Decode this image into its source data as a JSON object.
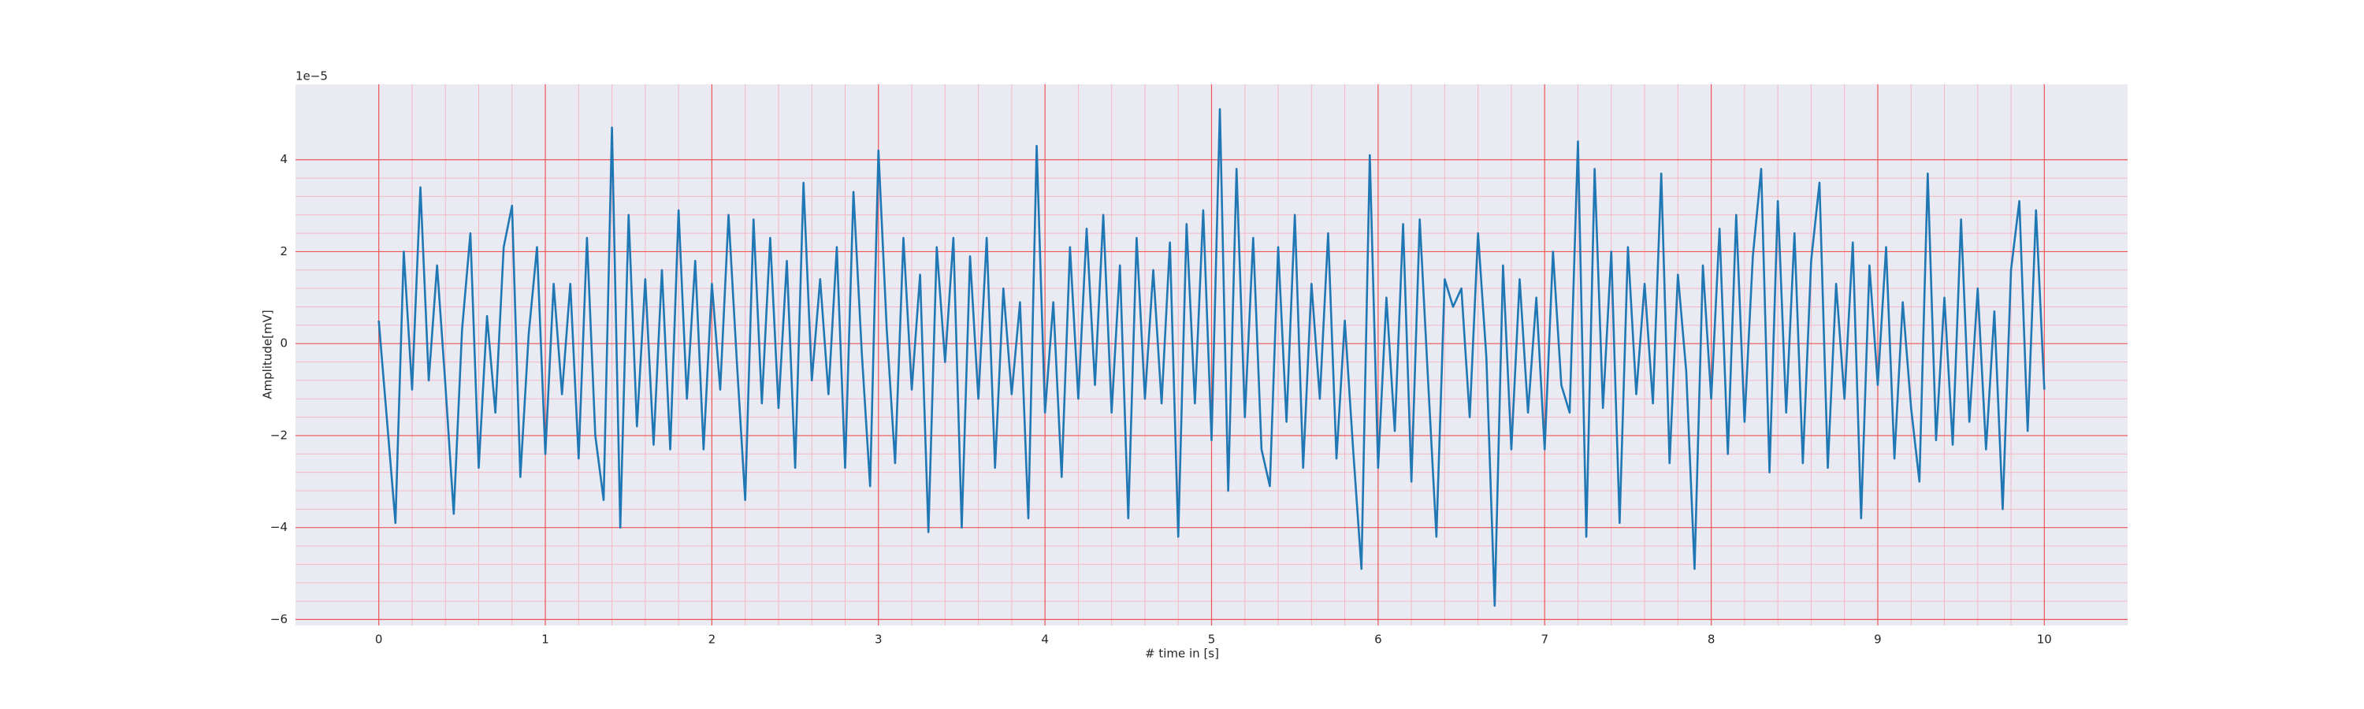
{
  "chart_data": {
    "type": "line",
    "xlabel": "# time in [s]",
    "ylabel": "Amplitude[mV]",
    "y_offset_label": "1e−5",
    "x": [
      0,
      0.05,
      0.1,
      0.15,
      0.2,
      0.25,
      0.3,
      0.35,
      0.4,
      0.45,
      0.5,
      0.55,
      0.6,
      0.65,
      0.7,
      0.75,
      0.8,
      0.85,
      0.9,
      0.95,
      1,
      1.05,
      1.1,
      1.15,
      1.2,
      1.25,
      1.3,
      1.35,
      1.4,
      1.45,
      1.5,
      1.55,
      1.6,
      1.65,
      1.7,
      1.75,
      1.8,
      1.85,
      1.9,
      1.95,
      2,
      2.05,
      2.1,
      2.15,
      2.2,
      2.25,
      2.3,
      2.35,
      2.4,
      2.45,
      2.5,
      2.55,
      2.6,
      2.65,
      2.7,
      2.75,
      2.8,
      2.85,
      2.9,
      2.95,
      3,
      3.05,
      3.1,
      3.15,
      3.2,
      3.25,
      3.3,
      3.35,
      3.4,
      3.45,
      3.5,
      3.55,
      3.6,
      3.65,
      3.7,
      3.75,
      3.8,
      3.85,
      3.9,
      3.95,
      4,
      4.05,
      4.1,
      4.15,
      4.2,
      4.25,
      4.3,
      4.35,
      4.4,
      4.45,
      4.5,
      4.55,
      4.6,
      4.65,
      4.7,
      4.75,
      4.8,
      4.85,
      4.9,
      4.95,
      5,
      5.05,
      5.1,
      5.15,
      5.2,
      5.25,
      5.3,
      5.35,
      5.4,
      5.45,
      5.5,
      5.55,
      5.6,
      5.65,
      5.7,
      5.75,
      5.8,
      5.85,
      5.9,
      5.95,
      6,
      6.05,
      6.1,
      6.15,
      6.2,
      6.25,
      6.3,
      6.35,
      6.4,
      6.45,
      6.5,
      6.55,
      6.6,
      6.65,
      6.7,
      6.75,
      6.8,
      6.85,
      6.9,
      6.95,
      7,
      7.05,
      7.1,
      7.15,
      7.2,
      7.25,
      7.3,
      7.35,
      7.4,
      7.45,
      7.5,
      7.55,
      7.6,
      7.65,
      7.7,
      7.75,
      7.8,
      7.85,
      7.9,
      7.95,
      8,
      8.05,
      8.1,
      8.15,
      8.2,
      8.25,
      8.3,
      8.35,
      8.4,
      8.45,
      8.5,
      8.55,
      8.6,
      8.65,
      8.7,
      8.75,
      8.8,
      8.85,
      8.9,
      8.95,
      9,
      9.05,
      9.1,
      9.15,
      9.2,
      9.25,
      9.3,
      9.35,
      9.4,
      9.45,
      9.5,
      9.55,
      9.6,
      9.65,
      9.7,
      9.75,
      9.8,
      9.85,
      9.9,
      9.95,
      10
    ],
    "values": [
      0.5,
      -1.7,
      -3.9,
      2.0,
      -1.0,
      3.4,
      -0.8,
      1.7,
      -0.9,
      -3.7,
      0.3,
      2.4,
      -2.7,
      0.6,
      -1.5,
      2.1,
      3.0,
      -2.9,
      0.2,
      2.1,
      -2.4,
      1.3,
      -1.1,
      1.3,
      -2.5,
      2.3,
      -2.0,
      -3.4,
      4.7,
      -4.0,
      2.8,
      -1.8,
      1.4,
      -2.2,
      1.6,
      -2.3,
      2.9,
      -1.2,
      1.8,
      -2.3,
      1.3,
      -1.0,
      2.8,
      -0.4,
      -3.4,
      2.7,
      -1.3,
      2.3,
      -1.4,
      1.8,
      -2.7,
      3.5,
      -0.8,
      1.4,
      -1.1,
      2.1,
      -2.7,
      3.3,
      -0.2,
      -3.1,
      4.2,
      0.3,
      -2.6,
      2.3,
      -1.0,
      1.5,
      -4.1,
      2.1,
      -0.4,
      2.3,
      -4.0,
      1.9,
      -1.2,
      2.3,
      -2.7,
      1.2,
      -1.1,
      0.9,
      -3.8,
      4.3,
      -1.5,
      0.9,
      -2.9,
      2.1,
      -1.2,
      2.5,
      -0.9,
      2.8,
      -1.5,
      1.7,
      -3.8,
      2.3,
      -1.2,
      1.6,
      -1.3,
      2.2,
      -4.2,
      2.6,
      -1.3,
      2.9,
      -2.1,
      5.1,
      -3.2,
      3.8,
      -1.6,
      2.3,
      -2.3,
      -3.1,
      2.1,
      -1.7,
      2.8,
      -2.7,
      1.3,
      -1.2,
      2.4,
      -2.5,
      0.5,
      -2.3,
      -4.9,
      4.1,
      -2.7,
      1.0,
      -1.9,
      2.6,
      -3.0,
      2.7,
      -0.8,
      -4.2,
      1.4,
      0.8,
      1.2,
      -1.6,
      2.4,
      -0.3,
      -5.7,
      1.7,
      -2.3,
      1.4,
      -1.5,
      1.0,
      -2.3,
      2.0,
      -0.9,
      -1.5,
      4.4,
      -4.2,
      3.8,
      -1.4,
      2.0,
      -3.9,
      2.1,
      -1.1,
      1.3,
      -1.3,
      3.7,
      -2.6,
      1.5,
      -0.6,
      -4.9,
      1.7,
      -1.2,
      2.5,
      -2.4,
      2.8,
      -1.7,
      1.9,
      3.8,
      -2.8,
      3.1,
      -1.5,
      2.4,
      -2.6,
      1.8,
      3.5,
      -2.7,
      1.3,
      -1.2,
      2.2,
      -3.8,
      1.7,
      -0.9,
      2.1,
      -2.5,
      0.9,
      -1.4,
      -3.0,
      3.7,
      -2.1,
      1.0,
      -2.2,
      2.7,
      -1.7,
      1.2,
      -2.3,
      0.7,
      -3.6,
      1.6,
      3.1,
      -1.9,
      2.9,
      -1.0
    ],
    "color": "#1f77b4",
    "xlim": [
      -0.5,
      10.5
    ],
    "xticks": [
      0,
      1,
      2,
      3,
      4,
      5,
      6,
      7,
      8,
      9,
      10
    ],
    "ylim": [
      -6.13,
      5.64
    ],
    "yticks": [
      {
        "value": -6,
        "label": "−6"
      },
      {
        "value": -4,
        "label": "−4"
      },
      {
        "value": -2,
        "label": "−2"
      },
      0,
      2,
      4
    ],
    "grid": true,
    "minor_grid": true
  }
}
